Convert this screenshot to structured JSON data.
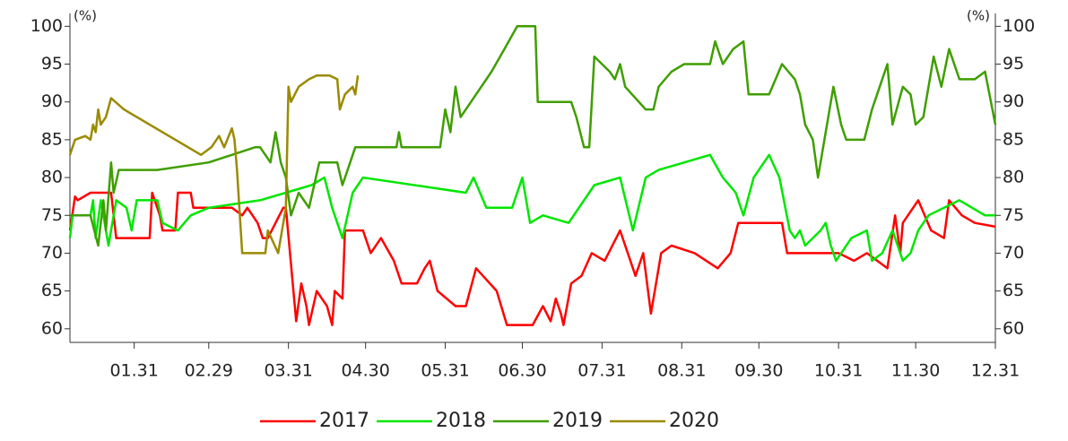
{
  "chart_data": {
    "type": "line",
    "annotations": [
      "(%)",
      "(%)"
    ],
    "xlim": [
      6,
      366
    ],
    "xticks": [
      {
        "value": 31,
        "label": "01.31"
      },
      {
        "value": 60,
        "label": "02.29"
      },
      {
        "value": 91,
        "label": "03.31"
      },
      {
        "value": 121,
        "label": "04.30"
      },
      {
        "value": 152,
        "label": "05.31"
      },
      {
        "value": 182,
        "label": "06.30"
      },
      {
        "value": 213,
        "label": "07.31"
      },
      {
        "value": 244,
        "label": "08.31"
      },
      {
        "value": 274,
        "label": "09.30"
      },
      {
        "value": 305,
        "label": "10.31"
      },
      {
        "value": 335,
        "label": "11.30"
      },
      {
        "value": 366,
        "label": "12.31"
      }
    ],
    "ylim": [
      58.2,
      101.7
    ],
    "yticks": [
      60,
      65,
      70,
      75,
      80,
      85,
      90,
      95,
      100
    ],
    "y2lim": [
      58.2,
      101.7
    ],
    "y2ticks": [
      60,
      65,
      70,
      75,
      80,
      85,
      90,
      95,
      100
    ],
    "legend": "bottom",
    "series": [
      {
        "name": "2017",
        "color": "#ff0000",
        "x": [
          6,
          8,
          9,
          14,
          16,
          22,
          24,
          25,
          37,
          38,
          41,
          42,
          47,
          48,
          53,
          54,
          69,
          73,
          75,
          79,
          81,
          83,
          89,
          90,
          94,
          96,
          98,
          99,
          102,
          104,
          106,
          108,
          109,
          112,
          113,
          120,
          123,
          127,
          132,
          135,
          141,
          144,
          146,
          149,
          156,
          160,
          164,
          172,
          176,
          186,
          190,
          193,
          195,
          197,
          198,
          201,
          205,
          209,
          214,
          220,
          226,
          229,
          232,
          236,
          240,
          249,
          258,
          263,
          266,
          283,
          285,
          305,
          311,
          316,
          324,
          327,
          329,
          330,
          334,
          336,
          341,
          346,
          348,
          353,
          358,
          366
        ],
        "values": [
          73,
          77.5,
          77,
          78,
          78,
          78,
          72,
          72,
          72,
          78,
          75,
          73,
          73,
          78,
          78,
          76,
          76,
          75,
          76,
          74,
          72,
          72,
          76,
          76,
          61,
          66,
          63,
          60.5,
          65,
          64,
          63,
          60.5,
          65,
          64,
          73,
          73,
          70,
          72,
          69,
          66,
          66,
          68,
          69,
          65,
          63,
          63,
          68,
          65,
          60.5,
          60.5,
          63,
          61,
          64,
          62,
          60.5,
          66,
          67,
          70,
          69,
          73,
          67,
          70,
          62,
          70,
          71,
          70,
          68,
          70,
          74,
          74,
          70,
          70,
          69,
          70,
          68,
          75,
          70,
          74,
          76,
          77,
          73,
          72,
          77,
          75,
          74,
          73.5
        ]
      },
      {
        "name": "2018",
        "color": "#00e600",
        "x": [
          6,
          7,
          14,
          15,
          16,
          18,
          21,
          24,
          28,
          30,
          32,
          40,
          42,
          48,
          53,
          60,
          80,
          90,
          100,
          105,
          108,
          112,
          116,
          120,
          130,
          160,
          163,
          168,
          178,
          182,
          185,
          190,
          200,
          210,
          220,
          225,
          230,
          235,
          255,
          260,
          265,
          268,
          272,
          278,
          282,
          286,
          288,
          290,
          292,
          298,
          300,
          302,
          304,
          310,
          316,
          318,
          322,
          326,
          330,
          333,
          336,
          340,
          352,
          362,
          366
        ],
        "values": [
          72,
          75,
          75,
          77,
          72,
          77,
          71,
          77,
          76,
          73,
          77,
          77,
          74,
          73,
          75,
          76,
          77,
          78,
          79,
          80,
          76,
          72,
          78,
          80,
          79.5,
          78,
          80,
          76,
          76,
          80,
          74,
          75,
          74,
          79,
          80,
          73,
          80,
          81,
          83,
          80,
          78,
          75,
          80,
          83,
          80,
          73,
          72,
          73,
          71,
          73,
          74,
          71,
          69,
          72,
          73,
          69,
          70,
          73,
          69,
          70,
          73,
          75,
          77,
          75,
          75
        ]
      },
      {
        "name": "2019",
        "color": "#3f9e00",
        "x": [
          6,
          14,
          17,
          19,
          20,
          22,
          23,
          25,
          40,
          60,
          78,
          80,
          84,
          86,
          88,
          90,
          92,
          95,
          99,
          103,
          110,
          112,
          117,
          133,
          134,
          135,
          150,
          152,
          154,
          156,
          158,
          162,
          170,
          175,
          180,
          187,
          188,
          201,
          203,
          206,
          208,
          210,
          216,
          218,
          220,
          222,
          230,
          233,
          235,
          240,
          245,
          255,
          257,
          260,
          264,
          268,
          270,
          278,
          283,
          288,
          290,
          292,
          295,
          297,
          300,
          303,
          306,
          308,
          315,
          318,
          321,
          324,
          326,
          330,
          333,
          335,
          338,
          342,
          345,
          348,
          352,
          358,
          362,
          366
        ],
        "values": [
          75,
          75,
          71,
          77,
          73,
          82,
          78,
          81,
          81,
          82,
          84,
          84,
          82,
          86,
          82,
          80,
          75,
          78,
          76,
          82,
          82,
          79,
          84,
          84,
          86,
          84,
          84,
          89,
          86,
          92,
          88,
          90,
          94,
          97,
          100,
          100,
          90,
          90,
          88,
          84,
          84,
          96,
          94,
          93,
          95,
          92,
          89,
          89,
          92,
          94,
          95,
          95,
          98,
          95,
          97,
          98,
          91,
          91,
          95,
          93,
          91,
          87,
          85,
          80,
          86,
          92,
          87,
          85,
          85,
          89,
          92,
          95,
          87,
          92,
          91,
          87,
          88,
          96,
          92,
          97,
          93,
          93,
          94,
          87
        ]
      },
      {
        "name": "2020",
        "color": "#9a8a00",
        "x": [
          6,
          8,
          12,
          14,
          15,
          16,
          17,
          18,
          20,
          22,
          27,
          57,
          61,
          64,
          66,
          69,
          70,
          71,
          73,
          82,
          83,
          87,
          90,
          91,
          92,
          95,
          99,
          102,
          107,
          110,
          111,
          113,
          116,
          117,
          118
        ],
        "values": [
          83,
          85,
          85.5,
          85,
          87,
          86,
          89,
          87,
          88,
          90.5,
          89,
          83,
          84,
          85.5,
          84,
          86.5,
          85,
          81,
          70,
          70,
          73,
          70,
          76,
          92,
          90,
          92,
          93,
          93.5,
          93.5,
          93,
          89,
          91,
          92,
          91,
          93.5
        ]
      }
    ]
  }
}
